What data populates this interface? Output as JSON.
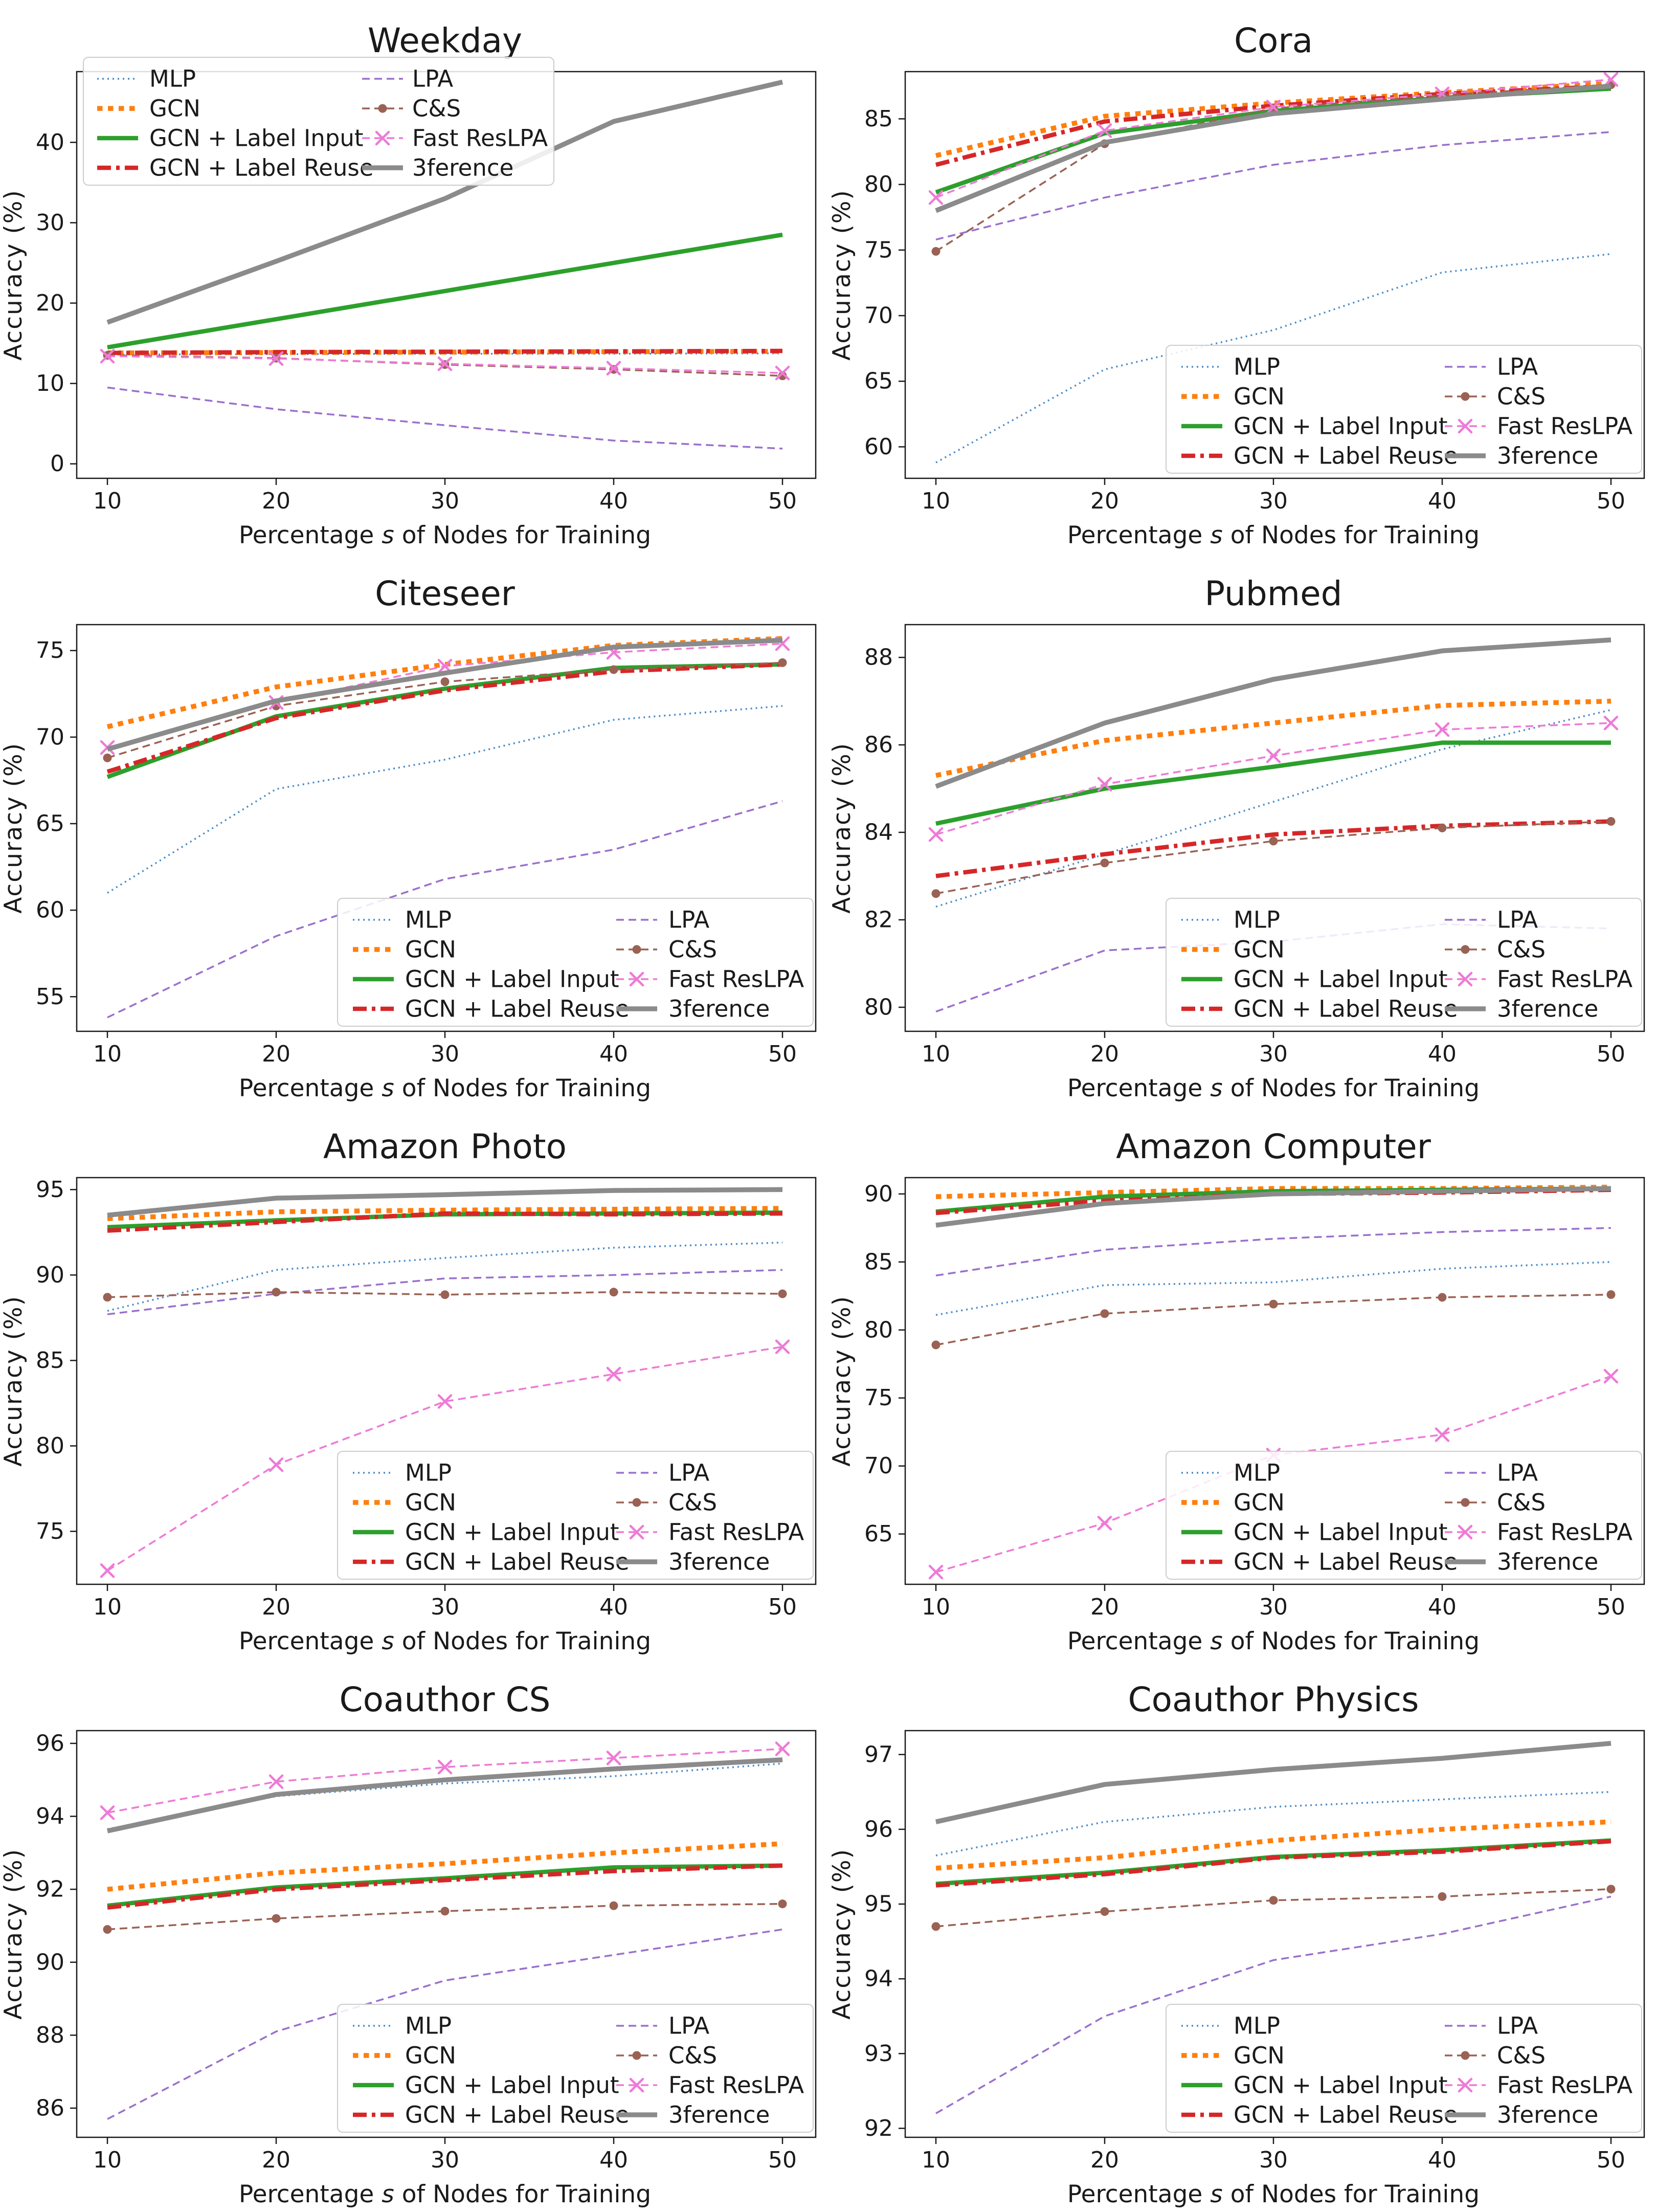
{
  "figure": {
    "xlabel_parts": [
      "Percentage ",
      "s",
      " of Nodes for Training"
    ],
    "ylabel": "Accuracy (%)",
    "x": [
      10,
      20,
      30,
      40,
      50
    ],
    "xticks": [
      10,
      20,
      30,
      40,
      50
    ],
    "series_meta": [
      {
        "name": "MLP",
        "color": "#4a8bc9",
        "style": "dotted",
        "marker": null
      },
      {
        "name": "GCN",
        "color": "#ff7f0e",
        "style": "densedot",
        "marker": null
      },
      {
        "name": "GCN + Label Input",
        "color": "#2ca02c",
        "style": "solid",
        "marker": null
      },
      {
        "name": "GCN + Label Reuse",
        "color": "#d62728",
        "style": "dashdot",
        "marker": null
      },
      {
        "name": "LPA",
        "color": "#9a70cc",
        "style": "dashed",
        "marker": null
      },
      {
        "name": "C&S",
        "color": "#9a6254",
        "style": "dashed",
        "marker": "circle"
      },
      {
        "name": "Fast ResLPA",
        "color": "#ee7ad6",
        "style": "dashed",
        "marker": "x"
      },
      {
        "name": "3ference",
        "color": "#8b8b8b",
        "style": "solidthick",
        "marker": null
      }
    ]
  },
  "chart_data": [
    {
      "type": "line",
      "title": "Weekday",
      "legend_position": "upper-left",
      "ylim": [
        -1.8,
        48.8
      ],
      "yticks": [
        0,
        10,
        20,
        30,
        40
      ],
      "series": [
        {
          "name": "MLP",
          "values": [
            13.6,
            13.65,
            13.7,
            13.7,
            13.75
          ]
        },
        {
          "name": "GCN",
          "values": [
            13.8,
            13.85,
            13.9,
            13.95,
            14.0
          ]
        },
        {
          "name": "GCN + Label Input",
          "values": [
            14.5,
            18.0,
            21.5,
            25.0,
            28.5
          ]
        },
        {
          "name": "GCN + Label Reuse",
          "values": [
            13.8,
            13.9,
            13.95,
            14.0,
            14.05
          ]
        },
        {
          "name": "LPA",
          "values": [
            9.5,
            6.8,
            4.8,
            2.9,
            1.9
          ]
        },
        {
          "name": "C&S",
          "values": [
            13.5,
            13.15,
            12.35,
            11.75,
            10.95
          ]
        },
        {
          "name": "Fast ResLPA",
          "values": [
            13.4,
            13.1,
            12.45,
            11.9,
            11.3
          ]
        },
        {
          "name": "3ference",
          "values": [
            17.6,
            25.2,
            33.0,
            42.6,
            47.5
          ]
        }
      ]
    },
    {
      "type": "line",
      "title": "Cora",
      "legend_position": "lower-right",
      "ylim": [
        57.6,
        88.6
      ],
      "yticks": [
        60,
        65,
        70,
        75,
        80,
        85
      ],
      "series": [
        {
          "name": "MLP",
          "values": [
            58.8,
            65.9,
            68.9,
            73.3,
            74.7
          ]
        },
        {
          "name": "GCN",
          "values": [
            82.2,
            85.2,
            86.2,
            87.0,
            87.7
          ]
        },
        {
          "name": "GCN + Label Input",
          "values": [
            79.4,
            83.9,
            85.6,
            86.6,
            87.3
          ]
        },
        {
          "name": "GCN + Label Reuse",
          "values": [
            81.5,
            84.8,
            86.0,
            86.9,
            87.5
          ]
        },
        {
          "name": "LPA",
          "values": [
            75.8,
            79.0,
            81.5,
            83.0,
            84.0
          ]
        },
        {
          "name": "C&S",
          "values": [
            74.9,
            83.1,
            85.8,
            86.8,
            87.6
          ]
        },
        {
          "name": "Fast ResLPA",
          "values": [
            79.0,
            84.1,
            85.9,
            86.9,
            88.0
          ]
        },
        {
          "name": "3ference",
          "values": [
            78.0,
            83.2,
            85.4,
            86.5,
            87.5
          ]
        }
      ]
    },
    {
      "type": "line",
      "title": "Citeseer",
      "legend_position": "lower-right",
      "ylim": [
        53.0,
        76.5
      ],
      "yticks": [
        55,
        60,
        65,
        70,
        75
      ],
      "series": [
        {
          "name": "MLP",
          "values": [
            61.0,
            67.0,
            68.7,
            71.0,
            71.8
          ]
        },
        {
          "name": "GCN",
          "values": [
            70.6,
            72.9,
            74.2,
            75.3,
            75.7
          ]
        },
        {
          "name": "GCN + Label Input",
          "values": [
            67.7,
            71.2,
            72.8,
            74.0,
            74.2
          ]
        },
        {
          "name": "GCN + Label Reuse",
          "values": [
            68.0,
            71.1,
            72.7,
            73.8,
            74.2
          ]
        },
        {
          "name": "LPA",
          "values": [
            53.8,
            58.5,
            61.8,
            63.5,
            66.3
          ]
        },
        {
          "name": "C&S",
          "values": [
            68.8,
            71.8,
            73.2,
            73.9,
            74.3
          ]
        },
        {
          "name": "Fast ResLPA",
          "values": [
            69.4,
            72.0,
            74.1,
            74.9,
            75.4
          ]
        },
        {
          "name": "3ference",
          "values": [
            69.3,
            72.1,
            73.7,
            75.2,
            75.6
          ]
        }
      ]
    },
    {
      "type": "line",
      "title": "Pubmed",
      "legend_position": "lower-right",
      "ylim": [
        79.45,
        88.75
      ],
      "yticks": [
        80,
        82,
        84,
        86,
        88
      ],
      "series": [
        {
          "name": "MLP",
          "values": [
            82.3,
            83.5,
            84.7,
            85.9,
            86.8
          ]
        },
        {
          "name": "GCN",
          "values": [
            85.3,
            86.1,
            86.5,
            86.9,
            87.0
          ]
        },
        {
          "name": "GCN + Label Input",
          "values": [
            84.2,
            85.0,
            85.5,
            86.05,
            86.05
          ]
        },
        {
          "name": "GCN + Label Reuse",
          "values": [
            83.0,
            83.5,
            83.95,
            84.15,
            84.25
          ]
        },
        {
          "name": "LPA",
          "values": [
            79.9,
            81.3,
            81.5,
            81.9,
            81.8
          ]
        },
        {
          "name": "C&S",
          "values": [
            82.6,
            83.3,
            83.8,
            84.1,
            84.25
          ]
        },
        {
          "name": "Fast ResLPA",
          "values": [
            83.95,
            85.1,
            85.75,
            86.35,
            86.5
          ]
        },
        {
          "name": "3ference",
          "values": [
            85.05,
            86.5,
            87.5,
            88.15,
            88.4
          ]
        }
      ]
    },
    {
      "type": "line",
      "title": "Amazon Photo",
      "legend_position": "lower-right",
      "ylim": [
        71.9,
        95.7
      ],
      "yticks": [
        75,
        80,
        85,
        90,
        95
      ],
      "series": [
        {
          "name": "MLP",
          "values": [
            87.9,
            90.3,
            91.0,
            91.6,
            91.9
          ]
        },
        {
          "name": "GCN",
          "values": [
            93.3,
            93.7,
            93.8,
            93.85,
            93.9
          ]
        },
        {
          "name": "GCN + Label Input",
          "values": [
            92.8,
            93.2,
            93.55,
            93.6,
            93.65
          ]
        },
        {
          "name": "GCN + Label Reuse",
          "values": [
            92.6,
            93.1,
            93.6,
            93.55,
            93.6
          ]
        },
        {
          "name": "LPA",
          "values": [
            87.7,
            88.9,
            89.8,
            90.0,
            90.3
          ]
        },
        {
          "name": "C&S",
          "values": [
            88.7,
            89.0,
            88.85,
            89.0,
            88.9
          ]
        },
        {
          "name": "Fast ResLPA",
          "values": [
            72.7,
            78.9,
            82.6,
            84.2,
            85.8
          ]
        },
        {
          "name": "3ference",
          "values": [
            93.5,
            94.5,
            94.7,
            94.95,
            95.0
          ]
        }
      ]
    },
    {
      "type": "line",
      "title": "Amazon Computer",
      "legend_position": "lower-right",
      "ylim": [
        61.3,
        91.2
      ],
      "yticks": [
        65,
        70,
        75,
        80,
        85,
        90
      ],
      "series": [
        {
          "name": "MLP",
          "values": [
            81.1,
            83.3,
            83.5,
            84.5,
            85.0
          ]
        },
        {
          "name": "GCN",
          "values": [
            89.8,
            90.1,
            90.4,
            90.4,
            90.5
          ]
        },
        {
          "name": "GCN + Label Input",
          "values": [
            88.7,
            89.8,
            90.2,
            90.3,
            90.4
          ]
        },
        {
          "name": "GCN + Label Reuse",
          "values": [
            88.6,
            89.5,
            90.0,
            90.1,
            90.3
          ]
        },
        {
          "name": "LPA",
          "values": [
            84.0,
            85.9,
            86.7,
            87.2,
            87.5
          ]
        },
        {
          "name": "C&S",
          "values": [
            78.9,
            81.2,
            81.9,
            82.4,
            82.6
          ]
        },
        {
          "name": "Fast ResLPA",
          "values": [
            62.2,
            65.8,
            70.8,
            72.3,
            76.6
          ]
        },
        {
          "name": "3ference",
          "values": [
            87.7,
            89.3,
            90.0,
            90.2,
            90.4
          ]
        }
      ]
    },
    {
      "type": "line",
      "title": "Coauthor CS",
      "legend_position": "lower-right",
      "ylim": [
        85.2,
        96.35
      ],
      "yticks": [
        86,
        88,
        90,
        92,
        94,
        96
      ],
      "series": [
        {
          "name": "MLP",
          "values": [
            93.65,
            94.55,
            94.9,
            95.1,
            95.45
          ]
        },
        {
          "name": "GCN",
          "values": [
            92.0,
            92.45,
            92.7,
            93.0,
            93.25
          ]
        },
        {
          "name": "GCN + Label Input",
          "values": [
            91.55,
            92.05,
            92.3,
            92.6,
            92.65
          ]
        },
        {
          "name": "GCN + Label Reuse",
          "values": [
            91.5,
            92.0,
            92.25,
            92.5,
            92.65
          ]
        },
        {
          "name": "LPA",
          "values": [
            85.7,
            88.1,
            89.5,
            90.2,
            90.9
          ]
        },
        {
          "name": "C&S",
          "values": [
            90.9,
            91.2,
            91.4,
            91.55,
            91.6
          ]
        },
        {
          "name": "Fast ResLPA",
          "values": [
            94.1,
            94.95,
            95.35,
            95.6,
            95.85
          ]
        },
        {
          "name": "3ference",
          "values": [
            93.6,
            94.6,
            95.0,
            95.3,
            95.55
          ]
        }
      ]
    },
    {
      "type": "line",
      "title": "Coauthor Physics",
      "legend_position": "lower-right",
      "ylim": [
        91.88,
        97.32
      ],
      "yticks": [
        92,
        93,
        94,
        95,
        96,
        97
      ],
      "series": [
        {
          "name": "MLP",
          "values": [
            95.65,
            96.1,
            96.3,
            96.4,
            96.5
          ]
        },
        {
          "name": "GCN",
          "values": [
            95.48,
            95.62,
            95.85,
            96.0,
            96.1
          ]
        },
        {
          "name": "GCN + Label Input",
          "values": [
            95.27,
            95.42,
            95.63,
            95.72,
            95.85
          ]
        },
        {
          "name": "GCN + Label Reuse",
          "values": [
            95.25,
            95.4,
            95.62,
            95.7,
            95.84
          ]
        },
        {
          "name": "LPA",
          "values": [
            92.2,
            93.5,
            94.25,
            94.6,
            95.1
          ]
        },
        {
          "name": "C&S",
          "values": [
            94.7,
            94.9,
            95.05,
            95.1,
            95.2
          ]
        },
        {
          "name": "Fast ResLPA",
          "values": [
            95.25,
            95.4,
            95.62,
            95.7,
            95.84
          ],
          "visible": false,
          "note": "curve coincides with GCN + Label Reuse and is hidden beneath it"
        },
        {
          "name": "3ference",
          "values": [
            96.1,
            96.6,
            96.8,
            96.95,
            97.15
          ]
        }
      ]
    }
  ]
}
